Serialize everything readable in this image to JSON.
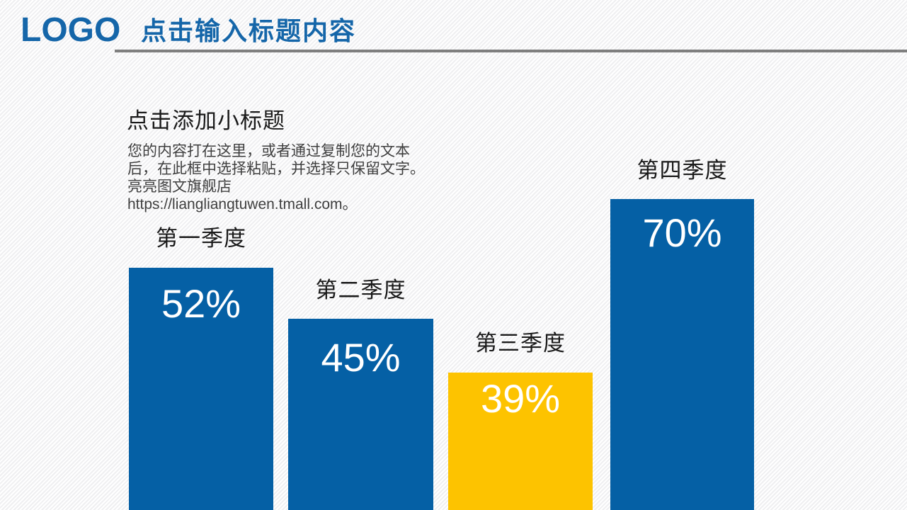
{
  "slide": {
    "background_stripe_light": "#FFFFFF",
    "background_stripe_dark": "#EFEFF1"
  },
  "header": {
    "logo": "LOGO",
    "title": "点击输入标题内容",
    "accent_color": "#1566A9",
    "divider_color": "#7F7F7F"
  },
  "content": {
    "subtitle": "点击添加小标题",
    "body_lines": [
      "您的内容打在这里，或者通过复制您的文本",
      "后，在此框中选择粘贴，并选择只保留文字。",
      "亮亮图文旗舰店",
      "https://liangliangtuwen.tmall.com。"
    ]
  },
  "chart_data": {
    "type": "bar",
    "categories": [
      "第一季度",
      "第二季度",
      "第三季度",
      "第四季度"
    ],
    "values": [
      52,
      45,
      39,
      70
    ],
    "unit": "%",
    "title": "",
    "xlabel": "",
    "ylabel": "",
    "legend": false,
    "grid": false,
    "orientation": "vertical",
    "value_label_color": "#FFFFFF",
    "bars": [
      {
        "label": "第一季度",
        "value": 52,
        "display": "52%",
        "color": "#0560A5"
      },
      {
        "label": "第二季度",
        "value": 45,
        "display": "45%",
        "color": "#0560A5"
      },
      {
        "label": "第三季度",
        "value": 39,
        "display": "39%",
        "color": "#FDC300"
      },
      {
        "label": "第四季度",
        "value": 70,
        "display": "70%",
        "color": "#0560A5"
      }
    ]
  }
}
